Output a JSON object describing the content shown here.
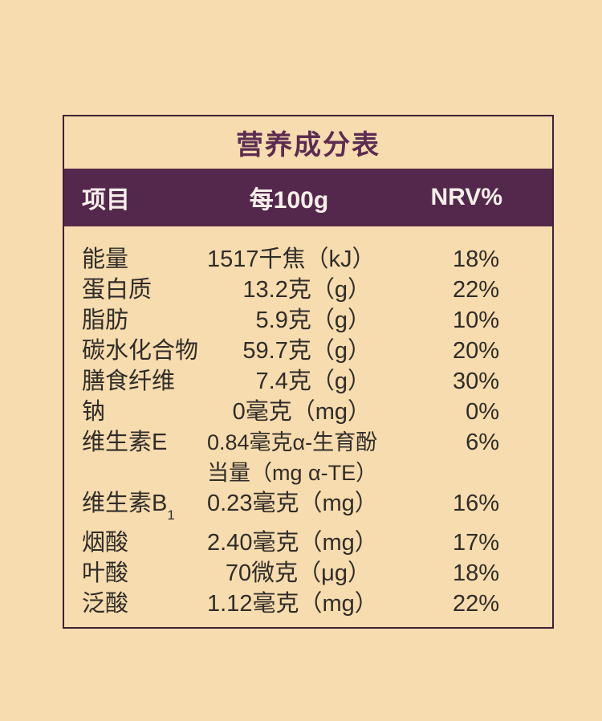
{
  "title": "营养成分表",
  "colors": {
    "background": "#f6dcae",
    "header_band": "#54284c",
    "title_text": "#5c2b52",
    "border": "#3e2138",
    "body_text": "#302c29",
    "header_text": "#f7f0ea"
  },
  "table": {
    "headers": {
      "item": "项目",
      "per100g": "每100g",
      "nrv": "NRV%"
    },
    "rows": [
      {
        "item": "能量",
        "value": "1517千焦（kJ）",
        "nrv": "18%"
      },
      {
        "item": "蛋白质",
        "value": "13.2克（g）",
        "nrv": "22%"
      },
      {
        "item": "脂肪",
        "value": "5.9克（g）",
        "nrv": "10%"
      },
      {
        "item": "碳水化合物",
        "value": "59.7克（g）",
        "nrv": "20%"
      },
      {
        "item": "膳食纤维",
        "value": "7.4克（g）",
        "nrv": "30%"
      },
      {
        "item": "钠",
        "value": "0毫克（mg）",
        "nrv": "0%"
      },
      {
        "item": "维生素E",
        "value_lines": [
          "0.84毫克α-生育酚",
          "当量（mg α-TE）"
        ],
        "nrv": "6%"
      },
      {
        "item": "维生素B",
        "item_sub": "1",
        "value": "0.23毫克（mg）",
        "nrv": "16%"
      },
      {
        "item": "烟酸",
        "value": "2.40毫克（mg）",
        "nrv": "17%"
      },
      {
        "item": "叶酸",
        "value": "70微克（μg）",
        "nrv": "18%"
      },
      {
        "item": "泛酸",
        "value": "1.12毫克（mg）",
        "nrv": "22%"
      }
    ]
  }
}
